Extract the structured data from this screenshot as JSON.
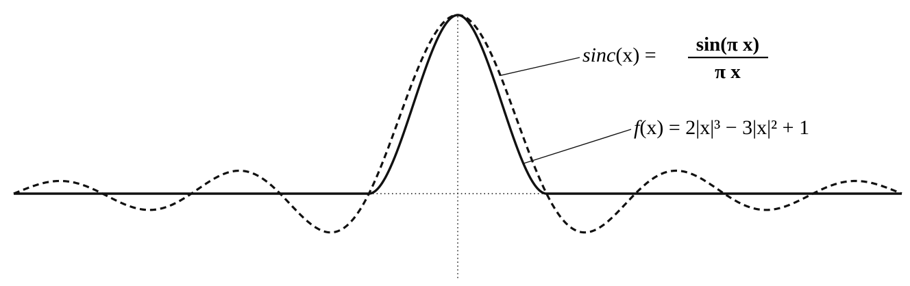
{
  "chart_data": {
    "type": "line",
    "x_range": [
      -5,
      5
    ],
    "y_range": [
      -0.22,
      1
    ],
    "grid": false,
    "series": [
      {
        "key": "sinc",
        "label_parts": {
          "lhs": "sinc",
          "arg": "(x) =",
          "numerator": "sin(π x)",
          "denominator": "π x"
        },
        "function": "sin(pi*x)/(pi*x)",
        "domain": [
          -5,
          5
        ],
        "style": "dashed"
      },
      {
        "key": "cubic",
        "label_parts": {
          "lhs": "f",
          "rest": "(x) = 2|x|³ − 3|x|² + 1"
        },
        "function": "2|x|^3 - 3|x|^2 + 1 for |x| ≤ 1, 0 otherwise",
        "domain": [
          -5,
          5
        ],
        "style": "solid"
      }
    ],
    "zero_crossings_sinc": [
      -5,
      -4,
      -3,
      -2,
      -1,
      1,
      2,
      3,
      4,
      5
    ]
  }
}
